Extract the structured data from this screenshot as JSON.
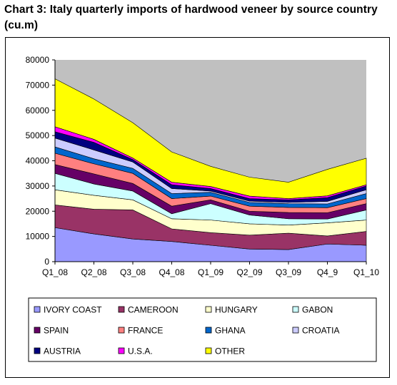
{
  "title": "Chart 3: Italy quarterly imports of hardwood veneer by source country (cu.m)",
  "chart_data": {
    "type": "area",
    "stacked": true,
    "categories": [
      "Q1_08",
      "Q2_08",
      "Q3_08",
      "Q4_08",
      "Q1_09",
      "Q2_09",
      "Q3_09",
      "Q4_9",
      "Q1_10"
    ],
    "ylim": [
      0,
      80000
    ],
    "yticks": [
      0,
      10000,
      20000,
      30000,
      40000,
      50000,
      60000,
      70000,
      80000
    ],
    "plot_background": "#c0c0c0",
    "grid": false,
    "legend_position": "bottom",
    "series": [
      {
        "name": "IVORY COAST",
        "color": "#9999ff",
        "values": [
          13500,
          11000,
          9000,
          8000,
          6500,
          5000,
          4800,
          7000,
          6500
        ]
      },
      {
        "name": "CAMEROON",
        "color": "#993366",
        "values": [
          9000,
          9800,
          11500,
          5000,
          5000,
          5500,
          6500,
          3200,
          5500
        ]
      },
      {
        "name": "HUNGARY",
        "color": "#ffffcc",
        "values": [
          6000,
          5500,
          4000,
          4000,
          5000,
          4500,
          3200,
          5200,
          4500
        ]
      },
      {
        "name": "GABON",
        "color": "#ccffff",
        "values": [
          6500,
          4500,
          3500,
          2000,
          6500,
          3500,
          2500,
          1500,
          4000
        ]
      },
      {
        "name": "SPAIN",
        "color": "#660066",
        "values": [
          3500,
          4000,
          3000,
          3000,
          1500,
          1500,
          2500,
          2500,
          2500
        ]
      },
      {
        "name": "FRANCE",
        "color": "#ff8080",
        "values": [
          4500,
          4000,
          4000,
          3000,
          1500,
          2000,
          2000,
          2000,
          2000
        ]
      },
      {
        "name": "GHANA",
        "color": "#0066cc",
        "values": [
          2500,
          2000,
          2000,
          2000,
          1500,
          1500,
          1500,
          1500,
          2000
        ]
      },
      {
        "name": "CROATIA",
        "color": "#ccccff",
        "values": [
          3500,
          3500,
          2500,
          2000,
          500,
          500,
          500,
          1000,
          1500
        ]
      },
      {
        "name": "AUSTRIA",
        "color": "#000080",
        "values": [
          2500,
          3000,
          1000,
          1500,
          1000,
          1000,
          1000,
          1500,
          1500
        ]
      },
      {
        "name": "U.S.A.",
        "color": "#ff00ff",
        "values": [
          2000,
          1200,
          600,
          1000,
          800,
          1000,
          500,
          700,
          500
        ]
      },
      {
        "name": "OTHER",
        "color": "#ffff00",
        "values": [
          19000,
          16000,
          14000,
          12000,
          8000,
          7500,
          6500,
          10500,
          10500
        ]
      }
    ]
  }
}
